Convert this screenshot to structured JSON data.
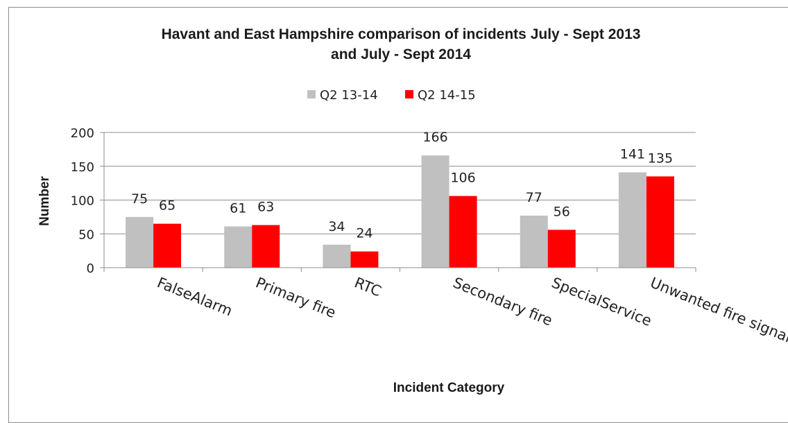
{
  "chart_data": {
    "type": "bar",
    "title": "Havant and East Hampshire comparison of incidents July - Sept  2013 and July - Sept 2014",
    "title_lines": [
      "Havant and East Hampshire comparison of incidents July - Sept  2013",
      "and July - Sept 2014"
    ],
    "xlabel": "Incident Category",
    "ylabel": "Number",
    "ylim": [
      0,
      200
    ],
    "yticks": [
      0,
      50,
      100,
      150,
      200
    ],
    "grid": true,
    "legend_position": "top",
    "categories": [
      "FalseAlarm",
      "Primary fire",
      "RTC",
      "Secondary fire",
      "SpecialService",
      "Unwanted fire signal"
    ],
    "series": [
      {
        "name": "Q2 13-14",
        "color": "#c0c0c0",
        "values": [
          75,
          61,
          34,
          166,
          77,
          141
        ]
      },
      {
        "name": "Q2 14-15",
        "color": "#ff0000",
        "values": [
          65,
          63,
          24,
          106,
          56,
          135
        ]
      }
    ]
  }
}
